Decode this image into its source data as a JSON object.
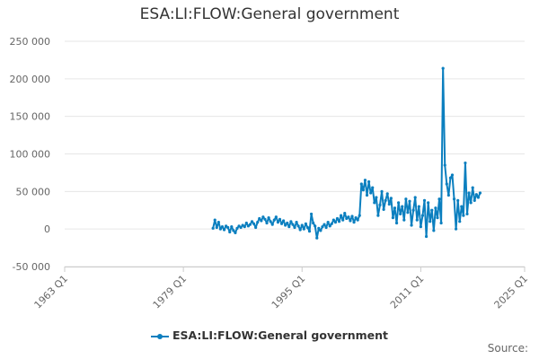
{
  "chart_data": {
    "type": "line",
    "title": "ESA:LI:FLOW:General government",
    "xlabel": "",
    "ylabel": "",
    "x_range": [
      "1963 Q1",
      "2025 Q1"
    ],
    "x_ticks": [
      "1963 Q1",
      "1979 Q1",
      "1995 Q1",
      "2011 Q1",
      "2025 Q1"
    ],
    "ylim": [
      -50000,
      250000
    ],
    "y_ticks": [
      -50000,
      0,
      50000,
      100000,
      150000,
      200000,
      250000
    ],
    "y_tick_labels": [
      "-50 000",
      "0",
      "50 000",
      "100 000",
      "150 000",
      "200 000",
      "250 000"
    ],
    "grid": true,
    "legend_position": "bottom",
    "series": [
      {
        "name": "ESA:LI:FLOW:General government",
        "color": "#0b7fbf",
        "points": [
          [
            "1983 Q1",
            1000
          ],
          [
            "1983 Q2",
            12000
          ],
          [
            "1983 Q3",
            2000
          ],
          [
            "1983 Q4",
            9000
          ],
          [
            "1984 Q1",
            0
          ],
          [
            "1984 Q2",
            3000
          ],
          [
            "1984 Q3",
            -1000
          ],
          [
            "1984 Q4",
            4000
          ],
          [
            "1985 Q1",
            2000
          ],
          [
            "1985 Q2",
            -4000
          ],
          [
            "1985 Q3",
            3000
          ],
          [
            "1985 Q4",
            -2000
          ],
          [
            "1986 Q1",
            -5000
          ],
          [
            "1986 Q2",
            1000
          ],
          [
            "1986 Q3",
            4000
          ],
          [
            "1986 Q4",
            2000
          ],
          [
            "1987 Q1",
            5000
          ],
          [
            "1987 Q2",
            3000
          ],
          [
            "1987 Q3",
            8000
          ],
          [
            "1987 Q4",
            4000
          ],
          [
            "1988 Q1",
            6000
          ],
          [
            "1988 Q2",
            10000
          ],
          [
            "1988 Q3",
            7000
          ],
          [
            "1988 Q4",
            2000
          ],
          [
            "1989 Q1",
            9000
          ],
          [
            "1989 Q2",
            14000
          ],
          [
            "1989 Q3",
            11000
          ],
          [
            "1989 Q4",
            16000
          ],
          [
            "1990 Q1",
            13000
          ],
          [
            "1990 Q2",
            8000
          ],
          [
            "1990 Q3",
            15000
          ],
          [
            "1990 Q4",
            10000
          ],
          [
            "1991 Q1",
            6000
          ],
          [
            "1991 Q2",
            12000
          ],
          [
            "1991 Q3",
            16000
          ],
          [
            "1991 Q4",
            9000
          ],
          [
            "1992 Q1",
            13000
          ],
          [
            "1992 Q2",
            7000
          ],
          [
            "1992 Q3",
            11000
          ],
          [
            "1992 Q4",
            5000
          ],
          [
            "1993 Q1",
            8000
          ],
          [
            "1993 Q2",
            3000
          ],
          [
            "1993 Q3",
            10000
          ],
          [
            "1993 Q4",
            6000
          ],
          [
            "1994 Q1",
            2000
          ],
          [
            "1994 Q2",
            9000
          ],
          [
            "1994 Q3",
            4000
          ],
          [
            "1994 Q4",
            -1000
          ],
          [
            "1995 Q1",
            5000
          ],
          [
            "1995 Q2",
            0
          ],
          [
            "1995 Q3",
            7000
          ],
          [
            "1995 Q4",
            2000
          ],
          [
            "1996 Q1",
            -3000
          ],
          [
            "1996 Q2",
            20000
          ],
          [
            "1996 Q3",
            8000
          ],
          [
            "1996 Q4",
            4000
          ],
          [
            "1997 Q1",
            -12000
          ],
          [
            "1997 Q2",
            1000
          ],
          [
            "1997 Q3",
            -2000
          ],
          [
            "1997 Q4",
            3000
          ],
          [
            "1998 Q1",
            6000
          ],
          [
            "1998 Q2",
            2000
          ],
          [
            "1998 Q3",
            9000
          ],
          [
            "1998 Q4",
            4000
          ],
          [
            "1999 Q1",
            7000
          ],
          [
            "1999 Q2",
            12000
          ],
          [
            "1999 Q3",
            9000
          ],
          [
            "1999 Q4",
            14000
          ],
          [
            "2000 Q1",
            10000
          ],
          [
            "2000 Q2",
            18000
          ],
          [
            "2000 Q3",
            12000
          ],
          [
            "2000 Q4",
            21000
          ],
          [
            "2001 Q1",
            14000
          ],
          [
            "2001 Q2",
            16000
          ],
          [
            "2001 Q3",
            11000
          ],
          [
            "2001 Q4",
            17000
          ],
          [
            "2002 Q1",
            9000
          ],
          [
            "2002 Q2",
            15000
          ],
          [
            "2002 Q3",
            12000
          ],
          [
            "2002 Q4",
            18000
          ],
          [
            "2003 Q1",
            60000
          ],
          [
            "2003 Q2",
            52000
          ],
          [
            "2003 Q3",
            65000
          ],
          [
            "2003 Q4",
            45000
          ],
          [
            "2004 Q1",
            63000
          ],
          [
            "2004 Q2",
            48000
          ],
          [
            "2004 Q3",
            55000
          ],
          [
            "2004 Q4",
            35000
          ],
          [
            "2005 Q1",
            42000
          ],
          [
            "2005 Q2",
            18000
          ],
          [
            "2005 Q3",
            32000
          ],
          [
            "2005 Q4",
            50000
          ],
          [
            "2006 Q1",
            26000
          ],
          [
            "2006 Q2",
            38000
          ],
          [
            "2006 Q3",
            47000
          ],
          [
            "2006 Q4",
            33000
          ],
          [
            "2007 Q1",
            41000
          ],
          [
            "2007 Q2",
            15000
          ],
          [
            "2007 Q3",
            28000
          ],
          [
            "2007 Q4",
            8000
          ],
          [
            "2008 Q1",
            35000
          ],
          [
            "2008 Q2",
            20000
          ],
          [
            "2008 Q3",
            30000
          ],
          [
            "2008 Q4",
            12000
          ],
          [
            "2009 Q1",
            40000
          ],
          [
            "2009 Q2",
            22000
          ],
          [
            "2009 Q3",
            37000
          ],
          [
            "2009 Q4",
            5000
          ],
          [
            "2010 Q1",
            25000
          ],
          [
            "2010 Q2",
            42000
          ],
          [
            "2010 Q3",
            12000
          ],
          [
            "2010 Q4",
            30000
          ],
          [
            "2011 Q1",
            3000
          ],
          [
            "2011 Q2",
            18000
          ],
          [
            "2011 Q3",
            38000
          ],
          [
            "2011 Q4",
            -10000
          ],
          [
            "2012 Q1",
            35000
          ],
          [
            "2012 Q2",
            10000
          ],
          [
            "2012 Q3",
            25000
          ],
          [
            "2012 Q4",
            -2000
          ],
          [
            "2013 Q1",
            28000
          ],
          [
            "2013 Q2",
            15000
          ],
          [
            "2013 Q3",
            40000
          ],
          [
            "2013 Q4",
            8000
          ],
          [
            "2014 Q1",
            214000
          ],
          [
            "2014 Q2",
            85000
          ],
          [
            "2014 Q3",
            60000
          ],
          [
            "2014 Q4",
            45000
          ],
          [
            "2015 Q1",
            68000
          ],
          [
            "2015 Q2",
            72000
          ],
          [
            "2015 Q3",
            40000
          ],
          [
            "2015 Q4",
            0
          ],
          [
            "2016 Q1",
            38000
          ],
          [
            "2016 Q2",
            10000
          ],
          [
            "2016 Q3",
            30000
          ],
          [
            "2016 Q4",
            18000
          ],
          [
            "2017 Q1",
            88000
          ],
          [
            "2017 Q2",
            20000
          ],
          [
            "2017 Q3",
            48000
          ],
          [
            "2017 Q4",
            35000
          ],
          [
            "2018 Q1",
            55000
          ],
          [
            "2018 Q2",
            38000
          ],
          [
            "2018 Q3",
            46000
          ],
          [
            "2018 Q4",
            42000
          ],
          [
            "2019 Q1",
            48000
          ]
        ]
      }
    ]
  },
  "legend": {
    "label": "ESA:LI:FLOW:General government"
  },
  "footer": {
    "source_label": "Source:"
  }
}
